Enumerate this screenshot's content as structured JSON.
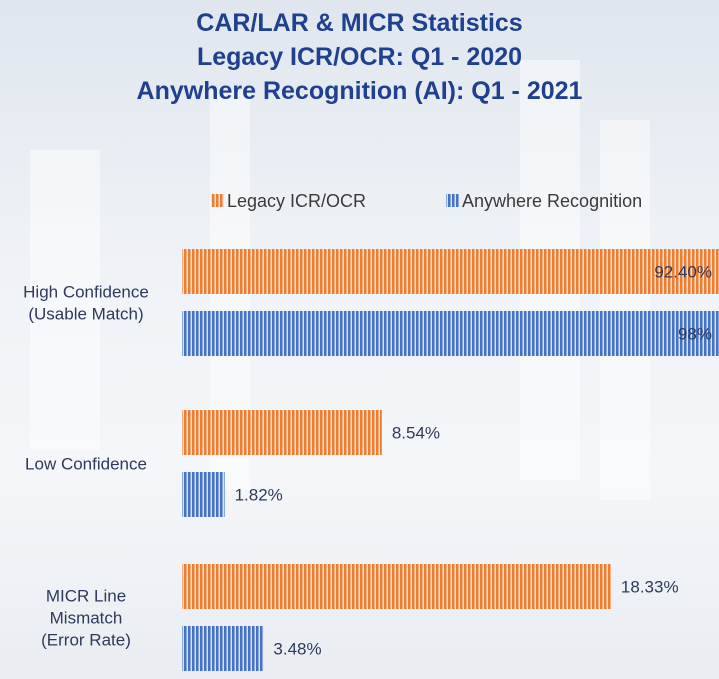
{
  "title": {
    "line1": "CAR/LAR & MICR Statistics",
    "line2": "Legacy ICR/OCR: Q1 - 2020",
    "line3": "Anywhere Recognition (AI): Q1 - 2021"
  },
  "colors": {
    "legacy": "#ed7d31",
    "anywhere": "#4472c4",
    "title": "#1f3f8f"
  },
  "chart_data": {
    "type": "bar",
    "orientation": "horizontal",
    "title": "CAR/LAR & MICR Statistics",
    "categories": [
      [
        "High Confidence",
        "(Usable Match)"
      ],
      [
        "Low Confidence"
      ],
      [
        "MICR Line",
        "Mismatch",
        "(Error Rate)"
      ]
    ],
    "series": [
      {
        "name": "Legacy ICR/OCR",
        "values": [
          92.4,
          8.54,
          18.33
        ],
        "labels": [
          "92.40%",
          "8.54%",
          "18.33%"
        ]
      },
      {
        "name": "Anywhere Recognition",
        "values": [
          98,
          1.82,
          3.48
        ],
        "labels": [
          "98%",
          "1.82%",
          "3.48%"
        ]
      }
    ],
    "legend_position": "top",
    "grid": false
  }
}
